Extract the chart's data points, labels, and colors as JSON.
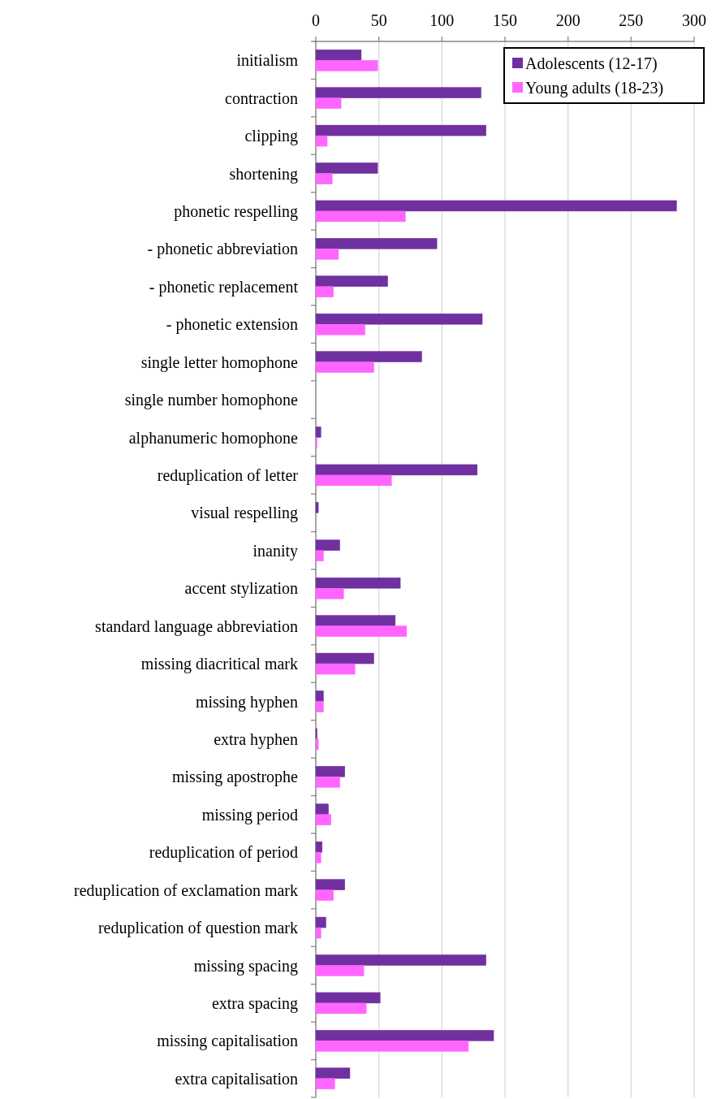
{
  "chart_data": {
    "type": "bar",
    "orientation": "horizontal",
    "categories": [
      "initialism",
      "contraction",
      "clipping",
      "shortening",
      "phonetic respelling",
      "- phonetic abbreviation",
      "- phonetic replacement",
      "- phonetic extension",
      "single letter homophone",
      "single number homophone",
      "alphanumeric homophone",
      "reduplication of letter",
      "visual respelling",
      "inanity",
      "accent stylization",
      "standard language abbreviation",
      "missing diacritical mark",
      "missing hyphen",
      "extra hyphen",
      "missing apostrophe",
      "missing period",
      "reduplication of period",
      "reduplication of exclamation mark",
      "reduplication of question mark",
      "missing spacing",
      "extra spacing",
      "missing capitalisation",
      "extra capitalisation"
    ],
    "series": [
      {
        "name": "Adolescents (12-17)",
        "color": "#7030a0",
        "values": [
          36,
          131,
          135,
          49,
          286,
          96,
          57,
          132,
          84,
          0,
          4,
          128,
          2,
          19,
          67,
          63,
          46,
          6,
          1,
          23,
          10,
          5,
          23,
          8,
          135,
          51,
          141,
          27
        ]
      },
      {
        "name": "Young adults (18-23)",
        "color": "#ff66ff",
        "values": [
          49,
          20,
          9,
          13,
          71,
          18,
          14,
          39,
          46,
          0,
          1,
          60,
          0,
          6,
          22,
          72,
          31,
          6,
          2,
          19,
          12,
          4,
          14,
          4,
          38,
          40,
          121,
          15
        ]
      }
    ],
    "xlim": [
      0,
      300
    ],
    "xticks": [
      0,
      50,
      100,
      150,
      200,
      250,
      300
    ],
    "grid": "x",
    "legend": "top right"
  }
}
